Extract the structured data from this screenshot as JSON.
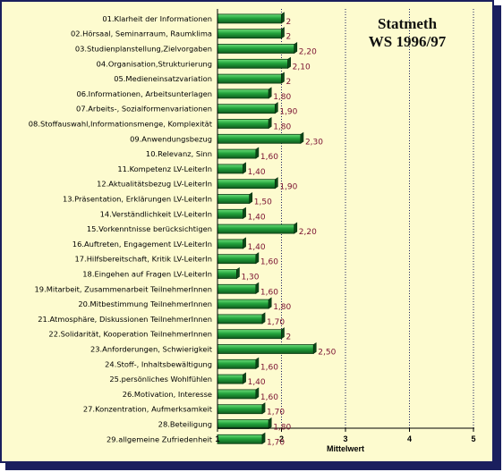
{
  "chart_data": {
    "type": "bar",
    "orientation": "horizontal",
    "title": "Statmeth",
    "subtitle": "WS 1996/97",
    "xlabel": "Mittelwert",
    "xlim": [
      1,
      5
    ],
    "xticks": [
      "1",
      "2",
      "3",
      "4",
      "5"
    ],
    "grid": "dotted vertical",
    "colors": {
      "bar": "#1f9a3a",
      "bar_light": "#5fd06e",
      "bar_dark": "#0b4a18",
      "value_text": "#7a1030",
      "frame": "#1a1f5e",
      "background": "#fdfbcf"
    },
    "categories": [
      "01.Klarheit der Informationen",
      "02.Hörsaal, Seminarraum, Raumklima",
      "03.Studienplanstellung,Zielvorgaben",
      "04.Organisation,Strukturierung",
      "05.Medieneinsatzvariation",
      "06.Informationen, Arbeitsunterlagen",
      "07.Arbeits-, Sozialformenvariationen",
      "08.Stoffauswahl,Informationsmenge, Komplexität",
      "09.Anwendungsbezug",
      "10.Relevanz, Sinn",
      "11.Kompetenz LV-LeiterIn",
      "12.Aktualitätsbezug LV-LeiterIn",
      "13.Präsentation, Erklärungen LV-LeiterIn",
      "14.Verständlichkeit LV-LeiterIn",
      "15.Vorkenntnisse berücksichtigen",
      "16.Auftreten, Engagement LV-LeiterIn",
      "17.Hilfsbereitschaft, Kritik LV-LeiterIn",
      "18.Eingehen auf Fragen LV-LeiterIn",
      "19.Mitarbeit, Zusammenarbeit TeilnehmerInnen",
      "20.Mitbestimmung TeilnehmerInnen",
      "21.Atmosphäre, Diskussionen TeilnehmerInnen",
      "22.Solidarität, Kooperation TeilnehmerInnen",
      "23.Anforderungen, Schwierigkeit",
      "24.Stoff-, Inhaltsbewältigung",
      "25.persönliches Wohlfühlen",
      "26.Motivation, Interesse",
      "27.Konzentration, Aufmerksamkeit",
      "28.Beteiligung",
      "29.allgemeine Zufriedenheit"
    ],
    "values": [
      2,
      2,
      2.2,
      2.1,
      2,
      1.8,
      1.9,
      1.8,
      2.3,
      1.6,
      1.4,
      1.9,
      1.5,
      1.4,
      2.2,
      1.4,
      1.6,
      1.3,
      1.6,
      1.8,
      1.7,
      2,
      2.5,
      1.6,
      1.4,
      1.6,
      1.7,
      1.8,
      1.7
    ],
    "value_labels": [
      "2",
      "2",
      "2,20",
      "2,10",
      "2",
      "1,80",
      "1,90",
      "1,80",
      "2,30",
      "1,60",
      "1,40",
      "1,90",
      "1,50",
      "1,40",
      "2,20",
      "1,40",
      "1,60",
      "1,30",
      "1,60",
      "1,80",
      "1,70",
      "2",
      "2,50",
      "1,60",
      "1,40",
      "1,60",
      "1,70",
      "1,80",
      "1,70"
    ]
  }
}
